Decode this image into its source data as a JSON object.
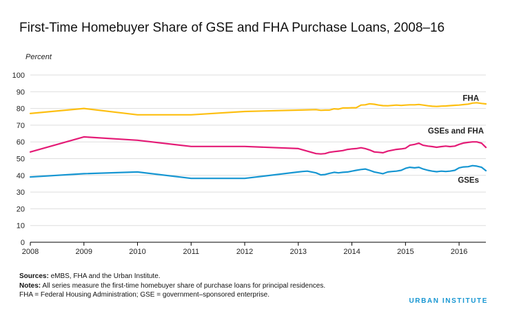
{
  "title": "First-Time Homebuyer Share of GSE and FHA Purchase Loans, 2008–16",
  "notes": {
    "sources_label": "Sources:",
    "sources_text": " eMBS, FHA and the Urban Institute.",
    "notes_label": "Notes:",
    "notes_text": " All series measure the first-time homebuyer share of purchase loans for principal residences.",
    "abbrev_text": "FHA = Federal Housing Administration; GSE = government–sponsored enterprise."
  },
  "brand": "URBAN INSTITUTE",
  "chart_data": {
    "type": "line",
    "title": "First-Time Homebuyer Share of GSE and FHA Purchase Loans, 2008–16",
    "ylabel": "Percent",
    "xlabel": "",
    "xlim": [
      2008,
      2016.5
    ],
    "ylim": [
      0,
      100
    ],
    "y_ticks": [
      0,
      10,
      20,
      30,
      40,
      50,
      60,
      70,
      80,
      90,
      100
    ],
    "x_ticks": [
      "2008",
      "2009",
      "2010",
      "2011",
      "2012",
      "2013",
      "2014",
      "2015",
      "2016"
    ],
    "grid": "horizontal",
    "legend": "inline labels at right",
    "series": [
      {
        "name": "FHA",
        "color": "#fdbf11",
        "points": [
          [
            2008,
            77
          ],
          [
            2009,
            80
          ],
          [
            2010,
            76.2
          ],
          [
            2011,
            76.2
          ],
          [
            2012,
            78.2
          ],
          [
            2013,
            79
          ],
          [
            2013.33,
            79.3
          ],
          [
            2013.42,
            78.9
          ],
          [
            2013.5,
            79
          ],
          [
            2013.58,
            79
          ],
          [
            2013.67,
            79.8
          ],
          [
            2013.75,
            79.6
          ],
          [
            2013.83,
            80.3
          ],
          [
            2013.92,
            80.3
          ],
          [
            2014,
            80.4
          ],
          [
            2014.08,
            80.4
          ],
          [
            2014.17,
            82
          ],
          [
            2014.25,
            82.2
          ],
          [
            2014.33,
            82.8
          ],
          [
            2014.42,
            82.5
          ],
          [
            2014.5,
            82
          ],
          [
            2014.58,
            81.7
          ],
          [
            2014.67,
            81.6
          ],
          [
            2014.75,
            81.8
          ],
          [
            2014.83,
            82
          ],
          [
            2014.92,
            81.8
          ],
          [
            2015,
            82
          ],
          [
            2015.08,
            82.2
          ],
          [
            2015.17,
            82.2
          ],
          [
            2015.25,
            82.4
          ],
          [
            2015.33,
            82
          ],
          [
            2015.42,
            81.6
          ],
          [
            2015.5,
            81.3
          ],
          [
            2015.58,
            81.2
          ],
          [
            2015.67,
            81.4
          ],
          [
            2015.75,
            81.5
          ],
          [
            2015.83,
            81.7
          ],
          [
            2015.92,
            81.9
          ],
          [
            2016,
            82
          ],
          [
            2016.08,
            82.3
          ],
          [
            2016.17,
            82.6
          ],
          [
            2016.25,
            83.2
          ],
          [
            2016.33,
            83.4
          ],
          [
            2016.42,
            83
          ],
          [
            2016.5,
            82.7
          ]
        ]
      },
      {
        "name": "GSEs and FHA",
        "color": "#e41b76",
        "points": [
          [
            2008,
            54
          ],
          [
            2009,
            63
          ],
          [
            2010,
            61
          ],
          [
            2011,
            57.3
          ],
          [
            2012,
            57.3
          ],
          [
            2013,
            56
          ],
          [
            2013.33,
            53
          ],
          [
            2013.42,
            52.8
          ],
          [
            2013.5,
            53
          ],
          [
            2013.58,
            53.8
          ],
          [
            2013.67,
            54.2
          ],
          [
            2013.75,
            54.5
          ],
          [
            2013.83,
            54.8
          ],
          [
            2013.92,
            55.5
          ],
          [
            2014,
            55.8
          ],
          [
            2014.08,
            56
          ],
          [
            2014.17,
            56.5
          ],
          [
            2014.25,
            56
          ],
          [
            2014.33,
            55.2
          ],
          [
            2014.42,
            54
          ],
          [
            2014.5,
            53.8
          ],
          [
            2014.58,
            53.5
          ],
          [
            2014.67,
            54.5
          ],
          [
            2014.75,
            55
          ],
          [
            2014.83,
            55.5
          ],
          [
            2014.92,
            55.8
          ],
          [
            2015,
            56.2
          ],
          [
            2015.08,
            58
          ],
          [
            2015.17,
            58.5
          ],
          [
            2015.25,
            59.2
          ],
          [
            2015.33,
            58
          ],
          [
            2015.42,
            57.5
          ],
          [
            2015.5,
            57.2
          ],
          [
            2015.58,
            56.8
          ],
          [
            2015.67,
            57.2
          ],
          [
            2015.75,
            57.5
          ],
          [
            2015.83,
            57.2
          ],
          [
            2015.92,
            57.5
          ],
          [
            2016,
            58.5
          ],
          [
            2016.08,
            59.3
          ],
          [
            2016.17,
            59.7
          ],
          [
            2016.25,
            60
          ],
          [
            2016.33,
            60
          ],
          [
            2016.42,
            59.2
          ],
          [
            2016.5,
            56.7
          ]
        ]
      },
      {
        "name": "GSEs",
        "color": "#1696d2",
        "points": [
          [
            2008,
            39
          ],
          [
            2009,
            41
          ],
          [
            2010,
            42
          ],
          [
            2011,
            38.2
          ],
          [
            2012,
            38.2
          ],
          [
            2013,
            42
          ],
          [
            2013.08,
            42.3
          ],
          [
            2013.17,
            42.5
          ],
          [
            2013.33,
            41.5
          ],
          [
            2013.42,
            40.3
          ],
          [
            2013.5,
            40.5
          ],
          [
            2013.58,
            41.2
          ],
          [
            2013.67,
            41.8
          ],
          [
            2013.75,
            41.5
          ],
          [
            2013.83,
            41.8
          ],
          [
            2013.92,
            42
          ],
          [
            2014,
            42.5
          ],
          [
            2014.08,
            43
          ],
          [
            2014.17,
            43.5
          ],
          [
            2014.25,
            43.8
          ],
          [
            2014.33,
            43
          ],
          [
            2014.42,
            42
          ],
          [
            2014.5,
            41.5
          ],
          [
            2014.58,
            41
          ],
          [
            2014.67,
            42
          ],
          [
            2014.75,
            42.3
          ],
          [
            2014.83,
            42.5
          ],
          [
            2014.92,
            43
          ],
          [
            2015,
            44.2
          ],
          [
            2015.08,
            44.8
          ],
          [
            2015.17,
            44.5
          ],
          [
            2015.25,
            44.8
          ],
          [
            2015.33,
            43.8
          ],
          [
            2015.42,
            43
          ],
          [
            2015.5,
            42.5
          ],
          [
            2015.58,
            42.2
          ],
          [
            2015.67,
            42.5
          ],
          [
            2015.75,
            42.3
          ],
          [
            2015.83,
            42.5
          ],
          [
            2015.92,
            43
          ],
          [
            2016,
            44.5
          ],
          [
            2016.08,
            45
          ],
          [
            2016.17,
            45.2
          ],
          [
            2016.25,
            45.8
          ],
          [
            2016.33,
            45.5
          ],
          [
            2016.42,
            44.8
          ],
          [
            2016.5,
            42.8
          ]
        ]
      }
    ]
  }
}
